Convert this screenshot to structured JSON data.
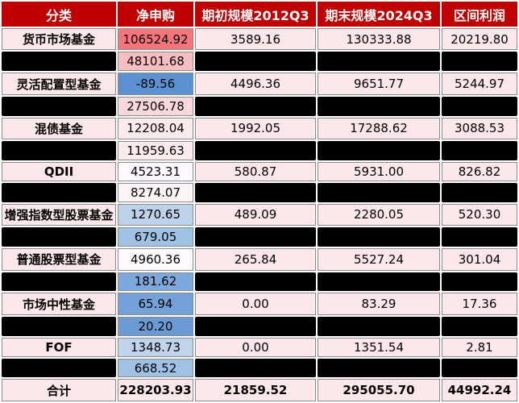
{
  "table": {
    "columns": [
      "分类",
      "净申购",
      "期初规模2012Q3",
      "期末规模2024Q3",
      "区间利润"
    ],
    "colors": {
      "header_bg": "#C00000",
      "header_text": "#FFFFFF",
      "row_bg": "#FCE8EA",
      "redacted_bar": "#000000",
      "cell_border": "#8A8A8A",
      "heatmap_max_red": "#F4767B",
      "heatmap_min_blue": "#5B90D1"
    },
    "rows": [
      {
        "type": "data",
        "category": "货币市场基金",
        "net": "106524.92",
        "net_bg": "#F4767B",
        "begin": "3589.16",
        "end": "130333.88",
        "profit": "20219.80"
      },
      {
        "type": "redacted",
        "net": "48101.68",
        "net_bg": "#F8BDC1"
      },
      {
        "type": "data",
        "category": "灵活配置型基金",
        "net": "-89.56",
        "net_bg": "#5B90D1",
        "begin": "4496.36",
        "end": "9651.77",
        "profit": "5244.97"
      },
      {
        "type": "redacted",
        "net": "27506.78",
        "net_bg": "#F9D8DC"
      },
      {
        "type": "data",
        "category": "混债基金",
        "net": "12208.04",
        "net_bg": "#FCEBEE",
        "begin": "1992.05",
        "end": "17288.62",
        "profit": "3088.53"
      },
      {
        "type": "redacted",
        "net": "11959.63",
        "net_bg": "#FCEBEE"
      },
      {
        "type": "data",
        "category": "QDII",
        "net": "4523.31",
        "net_bg": "#FCF8FB",
        "begin": "580.87",
        "end": "5931.00",
        "profit": "826.82"
      },
      {
        "type": "redacted",
        "net": "8274.07",
        "net_bg": "#FCF3F6"
      },
      {
        "type": "data",
        "category": "增强指数型股票基金",
        "net": "1270.65",
        "net_bg": "#BDD2EA",
        "begin": "489.09",
        "end": "2280.05",
        "profit": "520.30"
      },
      {
        "type": "redacted",
        "net": "679.05",
        "net_bg": "#9EC1E4"
      },
      {
        "type": "data",
        "category": "普通股票型基金",
        "net": "4960.36",
        "net_bg": "#FDFBFD",
        "begin": "265.84",
        "end": "5527.24",
        "profit": "301.04"
      },
      {
        "type": "redacted",
        "net": "181.62",
        "net_bg": "#7CA8DB"
      },
      {
        "type": "data",
        "category": "市场中性基金",
        "net": "65.94",
        "net_bg": "#73A1D8",
        "begin": "0.00",
        "end": "83.29",
        "profit": "17.36"
      },
      {
        "type": "redacted",
        "net": "20.20",
        "net_bg": "#6B9BD5"
      },
      {
        "type": "data",
        "category": "FOF",
        "net": "1348.73",
        "net_bg": "#BFD4EB",
        "begin": "0.00",
        "end": "1351.54",
        "profit": "2.81"
      },
      {
        "type": "redacted",
        "net": "668.52",
        "net_bg": "#9EC1E4"
      },
      {
        "type": "total",
        "category": "合计",
        "net": "228203.93",
        "net_bg": "#FCE8EA",
        "begin": "21859.52",
        "end": "295055.70",
        "profit": "44992.24"
      }
    ]
  },
  "chart_data": {
    "type": "table",
    "title": "",
    "columns": [
      "分类",
      "净申购",
      "期初规模2012Q3",
      "期末规模2024Q3",
      "区间利润"
    ],
    "rows": [
      [
        "货币市场基金",
        106524.92,
        3589.16,
        130333.88,
        20219.8
      ],
      [
        null,
        48101.68,
        null,
        null,
        null
      ],
      [
        "灵活配置型基金",
        -89.56,
        4496.36,
        9651.77,
        5244.97
      ],
      [
        null,
        27506.78,
        null,
        null,
        null
      ],
      [
        "混债基金",
        12208.04,
        1992.05,
        17288.62,
        3088.53
      ],
      [
        null,
        11959.63,
        null,
        null,
        null
      ],
      [
        "QDII",
        4523.31,
        580.87,
        5931.0,
        826.82
      ],
      [
        null,
        8274.07,
        null,
        null,
        null
      ],
      [
        "增强指数型股票基金",
        1270.65,
        489.09,
        2280.05,
        520.3
      ],
      [
        null,
        679.05,
        null,
        null,
        null
      ],
      [
        "普通股票型基金",
        4960.36,
        265.84,
        5527.24,
        301.04
      ],
      [
        null,
        181.62,
        null,
        null,
        null
      ],
      [
        "市场中性基金",
        65.94,
        0.0,
        83.29,
        17.36
      ],
      [
        null,
        20.2,
        null,
        null,
        null
      ],
      [
        "FOF",
        1348.73,
        0.0,
        1351.54,
        2.81
      ],
      [
        null,
        668.52,
        null,
        null,
        null
      ],
      [
        "合计",
        228203.93,
        21859.52,
        295055.7,
        44992.24
      ]
    ],
    "null_cells_meaning": "cell content covered by solid black redaction bar in image",
    "net_column_style": "red-white-blue color scale (high=red, low=blue), total row excluded",
    "layout": {
      "header_bg": "#C00000",
      "row_bg": "#FCE8EA",
      "grid": "gray 1px cell borders with white gaps"
    }
  }
}
